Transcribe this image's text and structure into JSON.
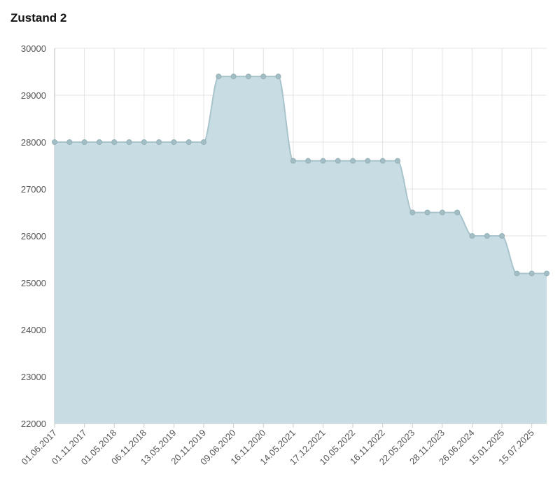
{
  "chart_data": {
    "type": "area",
    "title": "Zustand 2",
    "categories": [
      "01.06.2017",
      null,
      "01.11.2017",
      null,
      "01.05.2018",
      null,
      "06.11.2018",
      null,
      "13.05.2019",
      null,
      "20.11.2019",
      null,
      "09.06.2020",
      null,
      "16.11.2020",
      null,
      "14.05.2021",
      null,
      "17.12.2021",
      null,
      "10.05.2022",
      null,
      "16.11.2022",
      null,
      "22.05.2023",
      null,
      "28.11.2023",
      null,
      "26.06.2024",
      null,
      "15.01.2025",
      null,
      "15.07.2025",
      null
    ],
    "values": [
      28000,
      28000,
      28000,
      28000,
      28000,
      28000,
      28000,
      28000,
      28000,
      28000,
      28000,
      29400,
      29400,
      29400,
      29400,
      29400,
      27600,
      27600,
      27600,
      27600,
      27600,
      27600,
      27600,
      27600,
      26500,
      26500,
      26500,
      26500,
      26000,
      26000,
      26000,
      25200,
      25200,
      25200
    ],
    "color": "#c8dde3",
    "ylim": [
      22000,
      30000
    ],
    "yticks": [
      22000,
      23000,
      24000,
      25000,
      26000,
      27000,
      28000,
      29000,
      30000
    ],
    "grid": true
  }
}
